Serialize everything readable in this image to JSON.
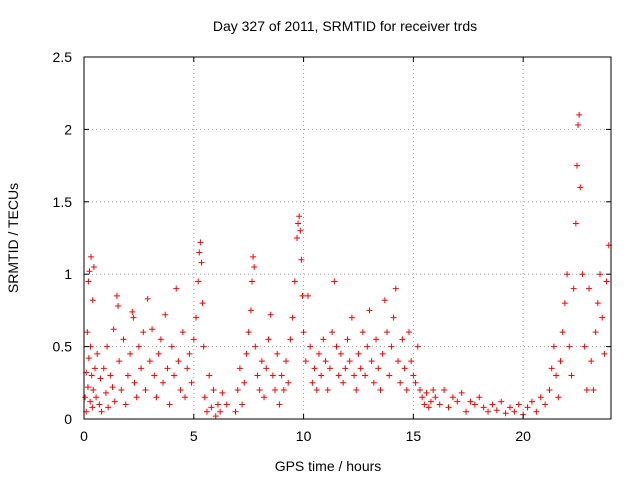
{
  "chart_data": {
    "type": "scatter",
    "title": "Day 327 of 2011, SRMTID for receiver trds",
    "xlabel": "GPS time / hours",
    "ylabel": "SRMTID / TECUs",
    "xlim": [
      0,
      24
    ],
    "ylim": [
      0,
      2.5
    ],
    "xticks": [
      0,
      5,
      10,
      15,
      20
    ],
    "xtick_labels": [
      "0",
      "5",
      "10",
      "15",
      "20"
    ],
    "yticks": [
      0,
      0.5,
      1,
      1.5,
      2,
      2.5
    ],
    "ytick_labels": [
      "0",
      "0.5",
      "1",
      "1.5",
      "2",
      "2.5"
    ],
    "grid": true,
    "marker": "+",
    "color": "#ff0000",
    "series": [
      {
        "points": [
          [
            0.05,
            0.15
          ],
          [
            0.1,
            0.32
          ],
          [
            0.1,
            0.05
          ],
          [
            0.15,
            0.6
          ],
          [
            0.18,
            0.22
          ],
          [
            0.2,
            0.95
          ],
          [
            0.22,
            0.42
          ],
          [
            0.25,
            1.02
          ],
          [
            0.28,
            0.12
          ],
          [
            0.3,
            0.5
          ],
          [
            0.32,
            1.12
          ],
          [
            0.35,
            0.3
          ],
          [
            0.38,
            0.08
          ],
          [
            0.4,
            0.82
          ],
          [
            0.42,
            0.2
          ],
          [
            0.45,
            1.05
          ],
          [
            0.5,
            0.35
          ],
          [
            0.55,
            0.15
          ],
          [
            0.6,
            0.45
          ],
          [
            0.7,
            0.1
          ],
          [
            0.75,
            0.28
          ],
          [
            0.8,
            0.05
          ],
          [
            0.9,
            0.35
          ],
          [
            1.0,
            0.18
          ],
          [
            1.05,
            0.5
          ],
          [
            1.1,
            0.08
          ],
          [
            1.2,
            0.3
          ],
          [
            1.3,
            0.22
          ],
          [
            1.35,
            0.62
          ],
          [
            1.4,
            0.12
          ],
          [
            1.5,
            0.85
          ],
          [
            1.55,
            0.78
          ],
          [
            1.6,
            0.4
          ],
          [
            1.7,
            0.2
          ],
          [
            1.8,
            0.55
          ],
          [
            1.9,
            0.1
          ],
          [
            2.0,
            0.3
          ],
          [
            2.1,
            0.45
          ],
          [
            2.2,
            0.74
          ],
          [
            2.25,
            0.7
          ],
          [
            2.3,
            0.25
          ],
          [
            2.4,
            0.15
          ],
          [
            2.5,
            0.5
          ],
          [
            2.6,
            0.35
          ],
          [
            2.7,
            0.6
          ],
          [
            2.8,
            0.2
          ],
          [
            2.9,
            0.83
          ],
          [
            3.0,
            0.4
          ],
          [
            3.1,
            0.62
          ],
          [
            3.2,
            0.3
          ],
          [
            3.3,
            0.15
          ],
          [
            3.4,
            0.45
          ],
          [
            3.5,
            0.55
          ],
          [
            3.6,
            0.25
          ],
          [
            3.7,
            0.72
          ],
          [
            3.8,
            0.35
          ],
          [
            3.9,
            0.1
          ],
          [
            4.0,
            0.5
          ],
          [
            4.1,
            0.3
          ],
          [
            4.2,
            0.9
          ],
          [
            4.3,
            0.4
          ],
          [
            4.4,
            0.2
          ],
          [
            4.5,
            0.6
          ],
          [
            4.6,
            0.15
          ],
          [
            4.7,
            0.35
          ],
          [
            4.8,
            0.45
          ],
          [
            4.9,
            0.25
          ],
          [
            5.0,
            0.55
          ],
          [
            5.1,
            0.7
          ],
          [
            5.2,
            0.95
          ],
          [
            5.25,
            1.15
          ],
          [
            5.3,
            1.22
          ],
          [
            5.35,
            1.08
          ],
          [
            5.4,
            0.8
          ],
          [
            5.45,
            0.5
          ],
          [
            5.5,
            0.15
          ],
          [
            5.6,
            0.05
          ],
          [
            5.7,
            0.3
          ],
          [
            5.8,
            0.08
          ],
          [
            5.9,
            0.2
          ],
          [
            6.0,
            0.02
          ],
          [
            6.1,
            0.1
          ],
          [
            6.2,
            0.05
          ],
          [
            6.3,
            0.18
          ],
          [
            6.5,
            0.1
          ],
          [
            6.9,
            0.05
          ],
          [
            7.0,
            0.2
          ],
          [
            7.1,
            0.35
          ],
          [
            7.2,
            0.1
          ],
          [
            7.3,
            0.25
          ],
          [
            7.4,
            0.45
          ],
          [
            7.5,
            0.6
          ],
          [
            7.6,
            0.75
          ],
          [
            7.65,
            0.95
          ],
          [
            7.7,
            1.12
          ],
          [
            7.75,
            1.05
          ],
          [
            7.8,
            0.5
          ],
          [
            7.9,
            0.3
          ],
          [
            8.0,
            0.2
          ],
          [
            8.1,
            0.4
          ],
          [
            8.2,
            0.15
          ],
          [
            8.3,
            0.35
          ],
          [
            8.4,
            0.55
          ],
          [
            8.5,
            0.72
          ],
          [
            8.6,
            0.3
          ],
          [
            8.7,
            0.2
          ],
          [
            8.8,
            0.45
          ],
          [
            8.9,
            0.1
          ],
          [
            9.0,
            0.3
          ],
          [
            9.1,
            0.2
          ],
          [
            9.2,
            0.4
          ],
          [
            9.3,
            0.25
          ],
          [
            9.4,
            0.55
          ],
          [
            9.5,
            0.7
          ],
          [
            9.6,
            0.95
          ],
          [
            9.7,
            1.25
          ],
          [
            9.75,
            1.35
          ],
          [
            9.8,
            1.4
          ],
          [
            9.85,
            1.3
          ],
          [
            9.9,
            1.1
          ],
          [
            9.95,
            0.85
          ],
          [
            10.0,
            0.6
          ],
          [
            10.1,
            0.4
          ],
          [
            10.2,
            0.85
          ],
          [
            10.3,
            0.5
          ],
          [
            10.4,
            0.25
          ],
          [
            10.5,
            0.35
          ],
          [
            10.6,
            0.2
          ],
          [
            10.7,
            0.45
          ],
          [
            10.8,
            0.3
          ],
          [
            10.9,
            0.55
          ],
          [
            11.0,
            0.4
          ],
          [
            11.1,
            0.2
          ],
          [
            11.2,
            0.35
          ],
          [
            11.3,
            0.6
          ],
          [
            11.4,
            0.95
          ],
          [
            11.5,
            0.5
          ],
          [
            11.6,
            0.3
          ],
          [
            11.7,
            0.45
          ],
          [
            11.8,
            0.25
          ],
          [
            11.9,
            0.35
          ],
          [
            12.0,
            0.55
          ],
          [
            12.1,
            0.4
          ],
          [
            12.2,
            0.7
          ],
          [
            12.3,
            0.3
          ],
          [
            12.4,
            0.2
          ],
          [
            12.5,
            0.45
          ],
          [
            12.6,
            0.35
          ],
          [
            12.7,
            0.6
          ],
          [
            12.8,
            0.3
          ],
          [
            12.9,
            0.5
          ],
          [
            13.0,
            0.75
          ],
          [
            13.1,
            0.4
          ],
          [
            13.2,
            0.25
          ],
          [
            13.3,
            0.55
          ],
          [
            13.4,
            0.35
          ],
          [
            13.5,
            0.2
          ],
          [
            13.6,
            0.45
          ],
          [
            13.7,
            0.82
          ],
          [
            13.8,
            0.6
          ],
          [
            13.9,
            0.3
          ],
          [
            14.0,
            0.5
          ],
          [
            14.1,
            0.7
          ],
          [
            14.2,
            0.9
          ],
          [
            14.3,
            0.4
          ],
          [
            14.4,
            0.25
          ],
          [
            14.5,
            0.55
          ],
          [
            14.6,
            0.35
          ],
          [
            14.7,
            0.2
          ],
          [
            14.8,
            0.6
          ],
          [
            14.9,
            0.4
          ],
          [
            15.0,
            0.3
          ],
          [
            15.1,
            0.25
          ],
          [
            15.2,
            0.5
          ],
          [
            15.3,
            0.2
          ],
          [
            15.4,
            0.15
          ],
          [
            15.5,
            0.1
          ],
          [
            15.6,
            0.18
          ],
          [
            15.7,
            0.08
          ],
          [
            15.8,
            0.12
          ],
          [
            15.9,
            0.2
          ],
          [
            16.0,
            0.15
          ],
          [
            16.2,
            0.1
          ],
          [
            16.4,
            0.2
          ],
          [
            16.6,
            0.08
          ],
          [
            16.8,
            0.15
          ],
          [
            17.0,
            0.12
          ],
          [
            17.2,
            0.18
          ],
          [
            17.4,
            0.05
          ],
          [
            17.6,
            0.12
          ],
          [
            17.8,
            0.1
          ],
          [
            18.0,
            0.15
          ],
          [
            18.2,
            0.08
          ],
          [
            18.4,
            0.05
          ],
          [
            18.6,
            0.1
          ],
          [
            18.8,
            0.06
          ],
          [
            19.0,
            0.12
          ],
          [
            19.2,
            0.04
          ],
          [
            19.4,
            0.08
          ],
          [
            19.6,
            0.05
          ],
          [
            19.8,
            0.1
          ],
          [
            20.0,
            0.03
          ],
          [
            20.2,
            0.08
          ],
          [
            20.4,
            0.12
          ],
          [
            20.6,
            0.05
          ],
          [
            20.8,
            0.15
          ],
          [
            21.0,
            0.1
          ],
          [
            21.2,
            0.2
          ],
          [
            21.3,
            0.35
          ],
          [
            21.4,
            0.5
          ],
          [
            21.5,
            0.3
          ],
          [
            21.6,
            0.15
          ],
          [
            21.7,
            0.4
          ],
          [
            21.8,
            0.6
          ],
          [
            21.9,
            0.8
          ],
          [
            22.0,
            1.0
          ],
          [
            22.1,
            0.5
          ],
          [
            22.2,
            0.3
          ],
          [
            22.3,
            0.9
          ],
          [
            22.4,
            1.35
          ],
          [
            22.45,
            1.75
          ],
          [
            22.5,
            2.03
          ],
          [
            22.55,
            2.1
          ],
          [
            22.6,
            1.6
          ],
          [
            22.7,
            1.0
          ],
          [
            22.8,
            0.5
          ],
          [
            22.9,
            0.2
          ],
          [
            23.0,
            0.9
          ],
          [
            23.1,
            0.4
          ],
          [
            23.2,
            0.2
          ],
          [
            23.3,
            0.6
          ],
          [
            23.4,
            0.8
          ],
          [
            23.5,
            1.0
          ],
          [
            23.6,
            0.7
          ],
          [
            23.7,
            0.45
          ],
          [
            23.8,
            0.95
          ],
          [
            23.9,
            1.2
          ]
        ]
      }
    ]
  }
}
